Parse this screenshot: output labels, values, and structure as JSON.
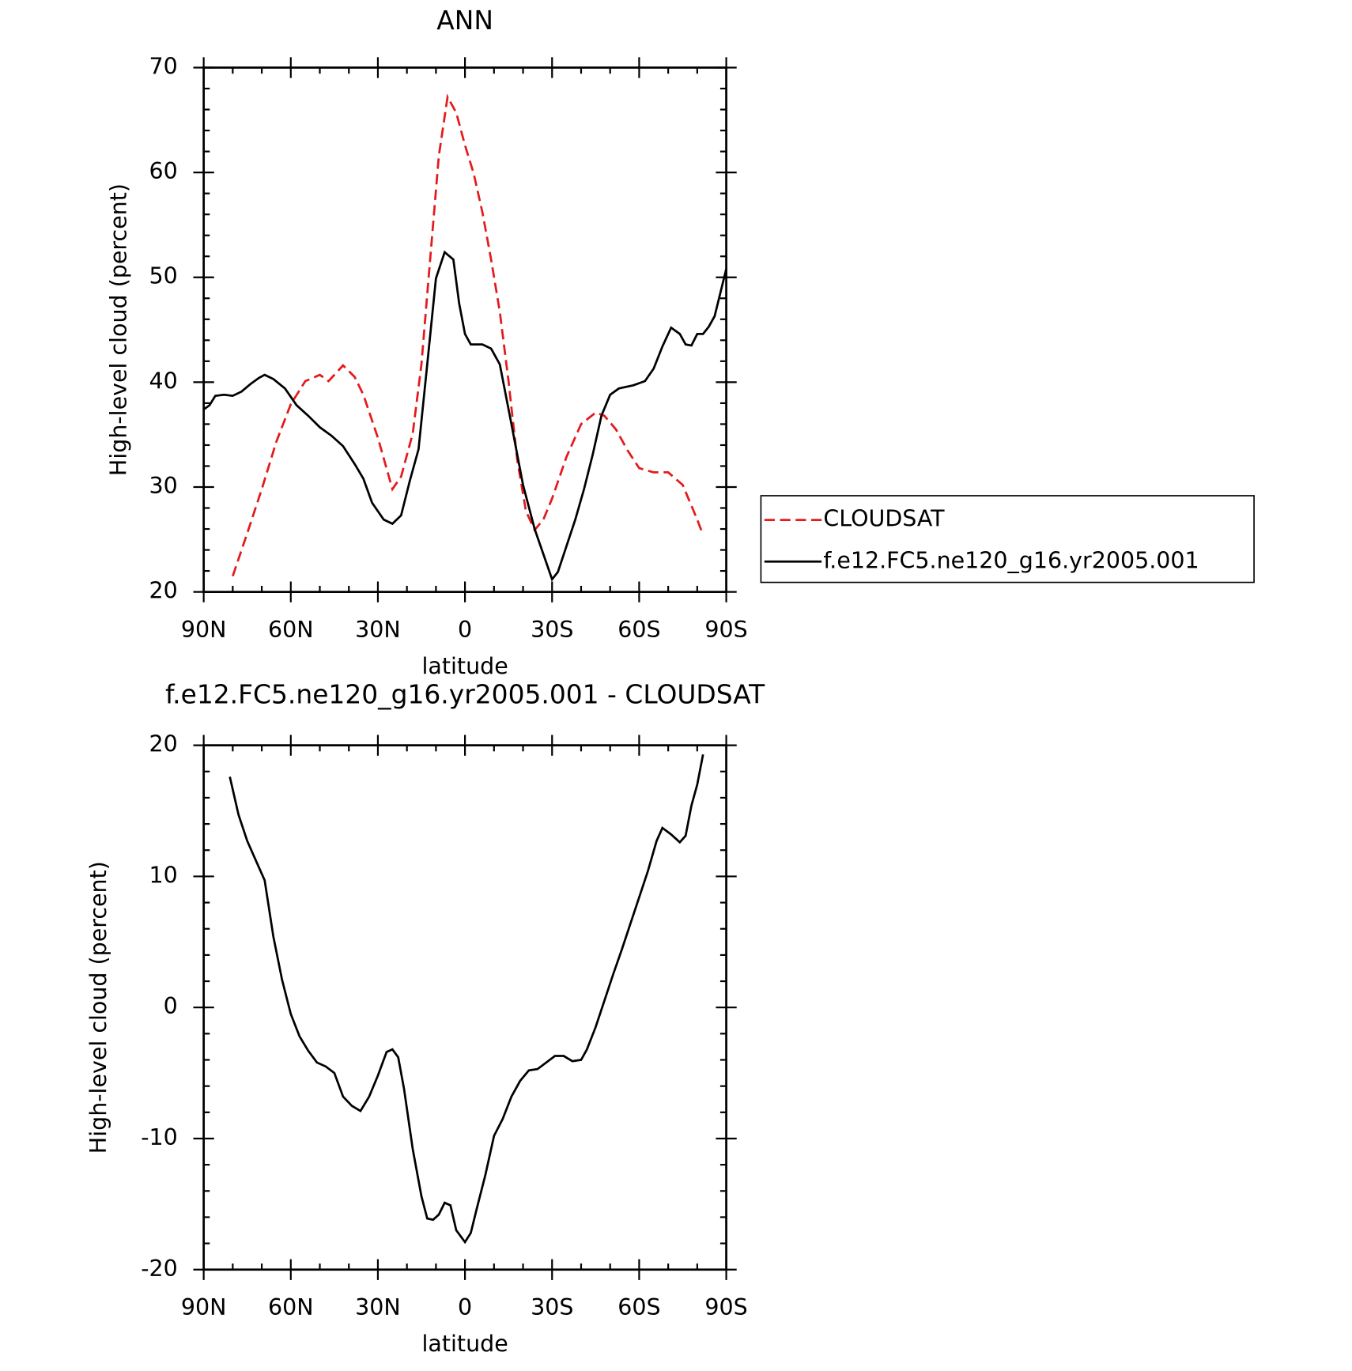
{
  "chart_data": [
    {
      "type": "line",
      "title": "ANN",
      "xlabel": "latitude",
      "ylabel": "High-level cloud (percent)",
      "xlim": [
        90,
        -90
      ],
      "xticks": [
        {
          "value": 90,
          "label": "90N"
        },
        {
          "value": 60,
          "label": "60N"
        },
        {
          "value": 30,
          "label": "30N"
        },
        0,
        {
          "value": -30,
          "label": "30S"
        },
        {
          "value": -60,
          "label": "60S"
        },
        {
          "value": -90,
          "label": "90S"
        }
      ],
      "ylim": [
        20,
        70
      ],
      "yticks": [
        20,
        30,
        40,
        50,
        60,
        70
      ],
      "legend": "right",
      "series": [
        {
          "name": "CLOUDSAT",
          "color": "#e41a1c",
          "dash": true,
          "x": [
            80,
            75,
            70,
            65,
            60,
            55,
            50,
            47,
            42,
            38,
            35,
            30,
            25,
            22,
            18,
            15,
            12,
            9,
            6,
            3,
            0,
            -3,
            -6,
            -9,
            -12,
            -15,
            -18,
            -21,
            -24,
            -27,
            -30,
            -35,
            -40,
            -45,
            -48,
            -52,
            -56,
            -60,
            -65,
            -70,
            -75,
            -80,
            -81.5
          ],
          "values": [
            21.5,
            25.6,
            29.8,
            34.3,
            37.9,
            40.1,
            40.7,
            40.1,
            41.6,
            40.5,
            38.8,
            34.7,
            29.8,
            31.0,
            35.1,
            41.7,
            51.7,
            61.6,
            67.2,
            65.7,
            62.6,
            59.9,
            56.2,
            51.7,
            46.7,
            40.1,
            32.6,
            27.7,
            25.9,
            26.9,
            28.9,
            32.9,
            36.0,
            37.1,
            36.8,
            35.5,
            33.5,
            31.8,
            31.4,
            31.4,
            30.2,
            26.9,
            25.8
          ]
        },
        {
          "name": "f.e12.FC5.ne120_g16.yr2005.001",
          "color": "#000000",
          "dash": false,
          "x": [
            90,
            88,
            86,
            83,
            80,
            77,
            74,
            71,
            69,
            66,
            62,
            58,
            54,
            50,
            46,
            42,
            38,
            35,
            32,
            28,
            25,
            22,
            19,
            16,
            13,
            10,
            7,
            4,
            2,
            0,
            -2,
            -6,
            -9,
            -12,
            -16,
            -20,
            -24,
            -27,
            -30,
            -32,
            -35,
            -38,
            -41,
            -44,
            -47,
            -50,
            -53,
            -58,
            -62,
            -65,
            -68,
            -71,
            -74,
            -76,
            -78,
            -80,
            -82,
            -84,
            -86,
            -90
          ],
          "values": [
            37.4,
            37.8,
            38.7,
            38.8,
            38.7,
            39.1,
            39.8,
            40.4,
            40.7,
            40.3,
            39.4,
            37.8,
            36.8,
            35.7,
            34.9,
            33.9,
            32.2,
            30.8,
            28.5,
            26.9,
            26.5,
            27.3,
            30.6,
            33.6,
            41.7,
            49.9,
            52.4,
            51.7,
            47.5,
            44.6,
            43.6,
            43.6,
            43.2,
            41.7,
            36.0,
            30.2,
            26.0,
            23.6,
            21.2,
            21.9,
            24.4,
            26.9,
            29.8,
            33.1,
            36.8,
            38.8,
            39.4,
            39.7,
            40.1,
            41.3,
            43.4,
            45.2,
            44.6,
            43.6,
            43.5,
            44.6,
            44.6,
            45.3,
            46.3,
            50.8
          ]
        }
      ]
    },
    {
      "type": "line",
      "title": "f.e12.FC5.ne120_g16.yr2005.001 - CLOUDSAT",
      "xlabel": "latitude",
      "ylabel": "High-level cloud (percent)",
      "xlim": [
        90,
        -90
      ],
      "xticks": [
        {
          "value": 90,
          "label": "90N"
        },
        {
          "value": 60,
          "label": "60N"
        },
        {
          "value": 30,
          "label": "30N"
        },
        0,
        {
          "value": -30,
          "label": "30S"
        },
        {
          "value": -60,
          "label": "60S"
        },
        {
          "value": -90,
          "label": "90S"
        }
      ],
      "ylim": [
        -20,
        20
      ],
      "yticks": [
        -20,
        -10,
        0,
        10,
        20
      ],
      "series": [
        {
          "color": "#000000",
          "dash": false,
          "x": [
            81,
            78,
            75,
            72,
            69,
            66,
            63,
            60,
            57,
            54,
            51,
            48,
            45,
            42,
            39,
            36,
            33,
            30,
            27,
            25,
            23,
            21,
            18,
            15,
            13,
            11,
            9,
            7,
            5,
            3,
            0,
            -2,
            -4,
            -7,
            -10,
            -13,
            -16,
            -19,
            -22,
            -25,
            -28,
            -31,
            -34,
            -37,
            -40,
            -42,
            -45,
            -48,
            -51,
            -54,
            -57,
            -60,
            -63,
            -66,
            -68,
            -71,
            -74,
            -76,
            -78,
            -80,
            -82
          ],
          "values": [
            17.6,
            14.7,
            12.7,
            11.2,
            9.7,
            5.4,
            2.1,
            -0.5,
            -2.2,
            -3.3,
            -4.2,
            -4.5,
            -5.0,
            -6.8,
            -7.5,
            -7.9,
            -6.8,
            -5.2,
            -3.4,
            -3.2,
            -3.8,
            -6.2,
            -10.8,
            -14.4,
            -16.1,
            -16.2,
            -15.8,
            -14.9,
            -15.1,
            -17.0,
            -17.9,
            -17.2,
            -15.4,
            -12.8,
            -9.8,
            -8.5,
            -6.8,
            -5.6,
            -4.8,
            -4.7,
            -4.2,
            -3.7,
            -3.7,
            -4.1,
            -4.0,
            -3.2,
            -1.5,
            0.5,
            2.5,
            4.4,
            6.4,
            8.4,
            10.4,
            12.7,
            13.7,
            13.2,
            12.6,
            13.1,
            15.4,
            17.0,
            19.3
          ]
        }
      ]
    }
  ]
}
